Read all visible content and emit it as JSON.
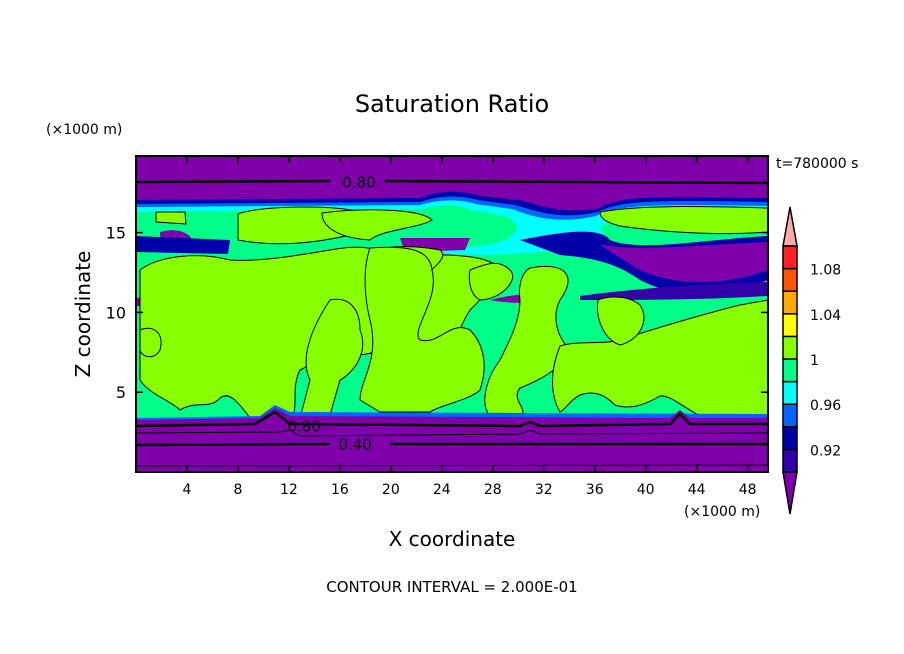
{
  "chart_data": {
    "type": "heatmap",
    "title": "Saturation Ratio",
    "xlabel": "X coordinate",
    "ylabel": "Z coordinate",
    "x_units": "(×1000 m)",
    "y_units": "(×1000 m)",
    "time_label": "t=780000 s",
    "footer": "CONTOUR INTERVAL = 2.000E-01",
    "xlim": [
      0,
      49.6
    ],
    "ylim": [
      0,
      19.8
    ],
    "x_ticks": [
      4,
      8,
      12,
      16,
      20,
      24,
      28,
      32,
      36,
      40,
      44,
      48
    ],
    "y_ticks": [
      5,
      10,
      15
    ],
    "contour_labels": [
      {
        "text": "0.80",
        "x": 17.5,
        "z": 18.2
      },
      {
        "text": "0.80",
        "x": 13.2,
        "z": 2.9
      },
      {
        "text": "0.40",
        "x": 17.2,
        "z": 1.8
      }
    ],
    "colorbar": {
      "levels": [
        0.9,
        0.92,
        0.94,
        0.96,
        0.98,
        1.0,
        1.02,
        1.04,
        1.06,
        1.08,
        1.1
      ],
      "colors": [
        "#3300aa",
        "#0000aa",
        "#0066ff",
        "#00ffff",
        "#00ff88",
        "#88ff00",
        "#ffff00",
        "#ffaa00",
        "#ff5500",
        "#ff2222"
      ],
      "under_color": "#7f00aa",
      "over_color": "#ffaaaa",
      "labels": [
        "0.92",
        "0.96",
        "1",
        "1.04",
        "1.08"
      ],
      "label_values": [
        0.92,
        0.96,
        1.0,
        1.04,
        1.08
      ]
    }
  }
}
